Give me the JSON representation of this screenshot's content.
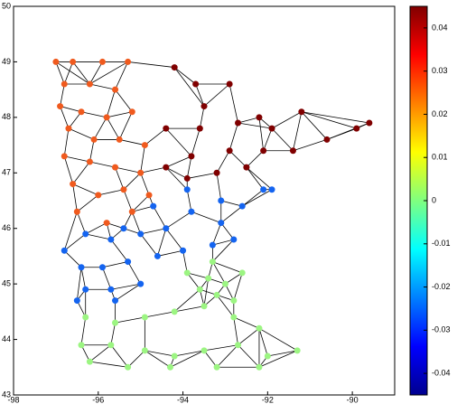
{
  "chart_data": {
    "type": "scatter",
    "xlim": [
      -98,
      -89
    ],
    "ylim": [
      43,
      50
    ],
    "xticks": [
      -98,
      -96,
      -94,
      -92,
      -90
    ],
    "yticks": [
      43,
      44,
      45,
      46,
      47,
      48,
      49,
      50
    ],
    "colorbar": {
      "lim": [
        -0.045,
        0.045
      ],
      "ticks": [
        -0.04,
        -0.03,
        -0.02,
        -0.01,
        0,
        0.01,
        0.02,
        0.03,
        0.04
      ]
    },
    "series": [
      {
        "color": "#f05a1e",
        "x": [
          -97,
          -96.6,
          -95.9,
          -95.3,
          -96.8,
          -96.2,
          -95.6,
          -96.9,
          -96.4,
          -95.8,
          -95.2,
          -96.7,
          -96.1,
          -95.5,
          -94.9,
          -96.8,
          -96.2,
          -95.6,
          -95,
          -96.6,
          -96,
          -95.4,
          -94.8,
          -96.5,
          -95.8,
          -95.2
        ],
        "values": [
          49,
          49,
          49,
          49,
          48.6,
          48.6,
          48.5,
          48.2,
          48.1,
          48,
          48.1,
          47.8,
          47.6,
          47.6,
          47.5,
          47.3,
          47.2,
          47.1,
          47,
          46.8,
          46.6,
          46.7,
          46.6,
          46.3,
          46.1,
          46.3
        ]
      },
      {
        "color": "#800000",
        "x": [
          -94.2,
          -93.7,
          -92.9,
          -93.5,
          -94.4,
          -93.6,
          -92.7,
          -92.2,
          -91.2,
          -90.6,
          -89.6,
          -89.9,
          -91.4,
          -92.1,
          -92.9,
          -93.8,
          -94.4,
          -93.2,
          -92.5,
          -91.9,
          -93.9
        ],
        "values": [
          48.9,
          48.6,
          48.6,
          48.2,
          47.8,
          47.8,
          47.9,
          48,
          48.1,
          47.6,
          47.9,
          47.8,
          47.4,
          47.4,
          47.4,
          47.3,
          47.1,
          47,
          47.1,
          47.8,
          46.9
        ]
      },
      {
        "color": "#1464f0",
        "x": [
          -96.8,
          -96.3,
          -95.7,
          -95,
          -94.4,
          -93.8,
          -93.1,
          -92.6,
          -92.1,
          -91.9,
          -94.7,
          -95.4,
          -96.4,
          -95.9,
          -95.3,
          -94.6,
          -94,
          -93.3,
          -92.8,
          -96.3,
          -95.7,
          -95,
          -96.5,
          -95.6,
          -93.9,
          -93.1
        ],
        "values": [
          45.6,
          45.9,
          45.8,
          45.9,
          46,
          46.3,
          46.1,
          46.4,
          46.7,
          46.7,
          46.4,
          46,
          45.3,
          45.3,
          45.4,
          45.5,
          45.6,
          45.7,
          45.8,
          44.9,
          44.9,
          45,
          44.7,
          44.7,
          46.7,
          46.5
        ]
      },
      {
        "color": "#9cf582",
        "x": [
          -96.3,
          -95.6,
          -94.9,
          -94.2,
          -93.5,
          -92.8,
          -92.2,
          -96.4,
          -95.7,
          -94.9,
          -94.2,
          -93.5,
          -92.7,
          -92,
          -91.3,
          -96.2,
          -95.3,
          -94.3,
          -93.2,
          -92.2,
          -93.4,
          -93,
          -93.2,
          -92.8,
          -93.6,
          -93.9,
          -92.6,
          -93.3
        ],
        "values": [
          44.4,
          44.3,
          44.4,
          44.5,
          44.6,
          44.4,
          44.2,
          43.9,
          43.9,
          43.8,
          43.7,
          43.8,
          43.9,
          43.7,
          43.8,
          43.6,
          43.5,
          43.5,
          43.5,
          43.5,
          45.1,
          45,
          44.8,
          44.7,
          44.9,
          45.2,
          45.2,
          45.4
        ]
      }
    ]
  }
}
